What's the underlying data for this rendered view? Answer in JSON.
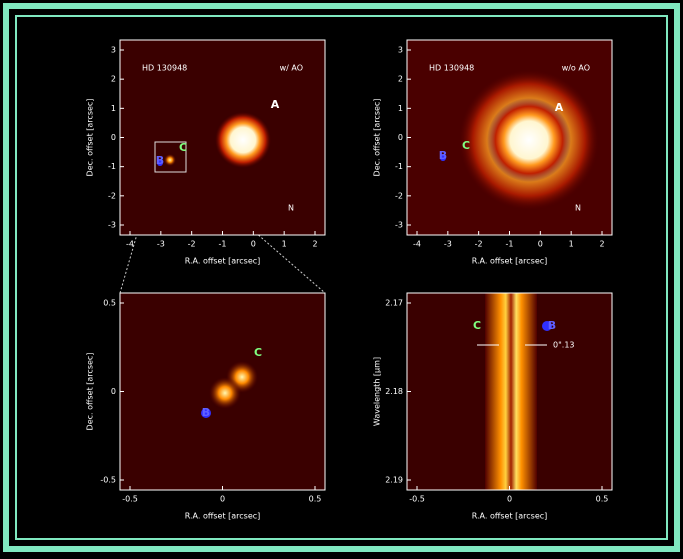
{
  "panels": [
    {
      "target": "HD 130948",
      "mode": "w/ AO",
      "labels": [
        "A",
        "C",
        "B"
      ],
      "compass": "N",
      "x_label": "R.A. offset [arcsec]",
      "y_label": "Dec. offset [arcsec]",
      "x_ticks": [
        "-4",
        "-3",
        "-2",
        "-1",
        "0",
        "1",
        "2"
      ],
      "y_ticks": [
        "3",
        "2",
        "1",
        "0",
        "-1",
        "-2",
        "-3"
      ]
    },
    {
      "target": "HD 130948",
      "mode": "w/o AO",
      "labels": [
        "A",
        "C",
        "B"
      ],
      "compass": "N",
      "x_label": "R.A. offset [arcsec]",
      "y_label": "Dec. offset [arcsec]",
      "x_ticks": [
        "-4",
        "-3",
        "-2",
        "-1",
        "0",
        "1",
        "2"
      ],
      "y_ticks": [
        "3",
        "2",
        "1",
        "0",
        "-1",
        "-2",
        "-3"
      ]
    },
    {
      "labels": [
        "C",
        "B"
      ],
      "x_label": "R.A. offset [arcsec]",
      "y_label": "Dec. offset [arcsec]",
      "x_ticks": [
        "-0.5",
        "0",
        "0.5"
      ],
      "y_ticks": [
        "0.5",
        "0",
        "-0.5"
      ]
    },
    {
      "labels": [
        "C",
        "B"
      ],
      "separation": "0\".13",
      "x_label": "R.A. offset [arcsec]",
      "y_label": "Wavelength [µm]",
      "x_ticks": [
        "-0.5",
        "0",
        "0.5"
      ],
      "y_ticks": [
        "2.17",
        "2.18",
        "2.19"
      ]
    }
  ]
}
